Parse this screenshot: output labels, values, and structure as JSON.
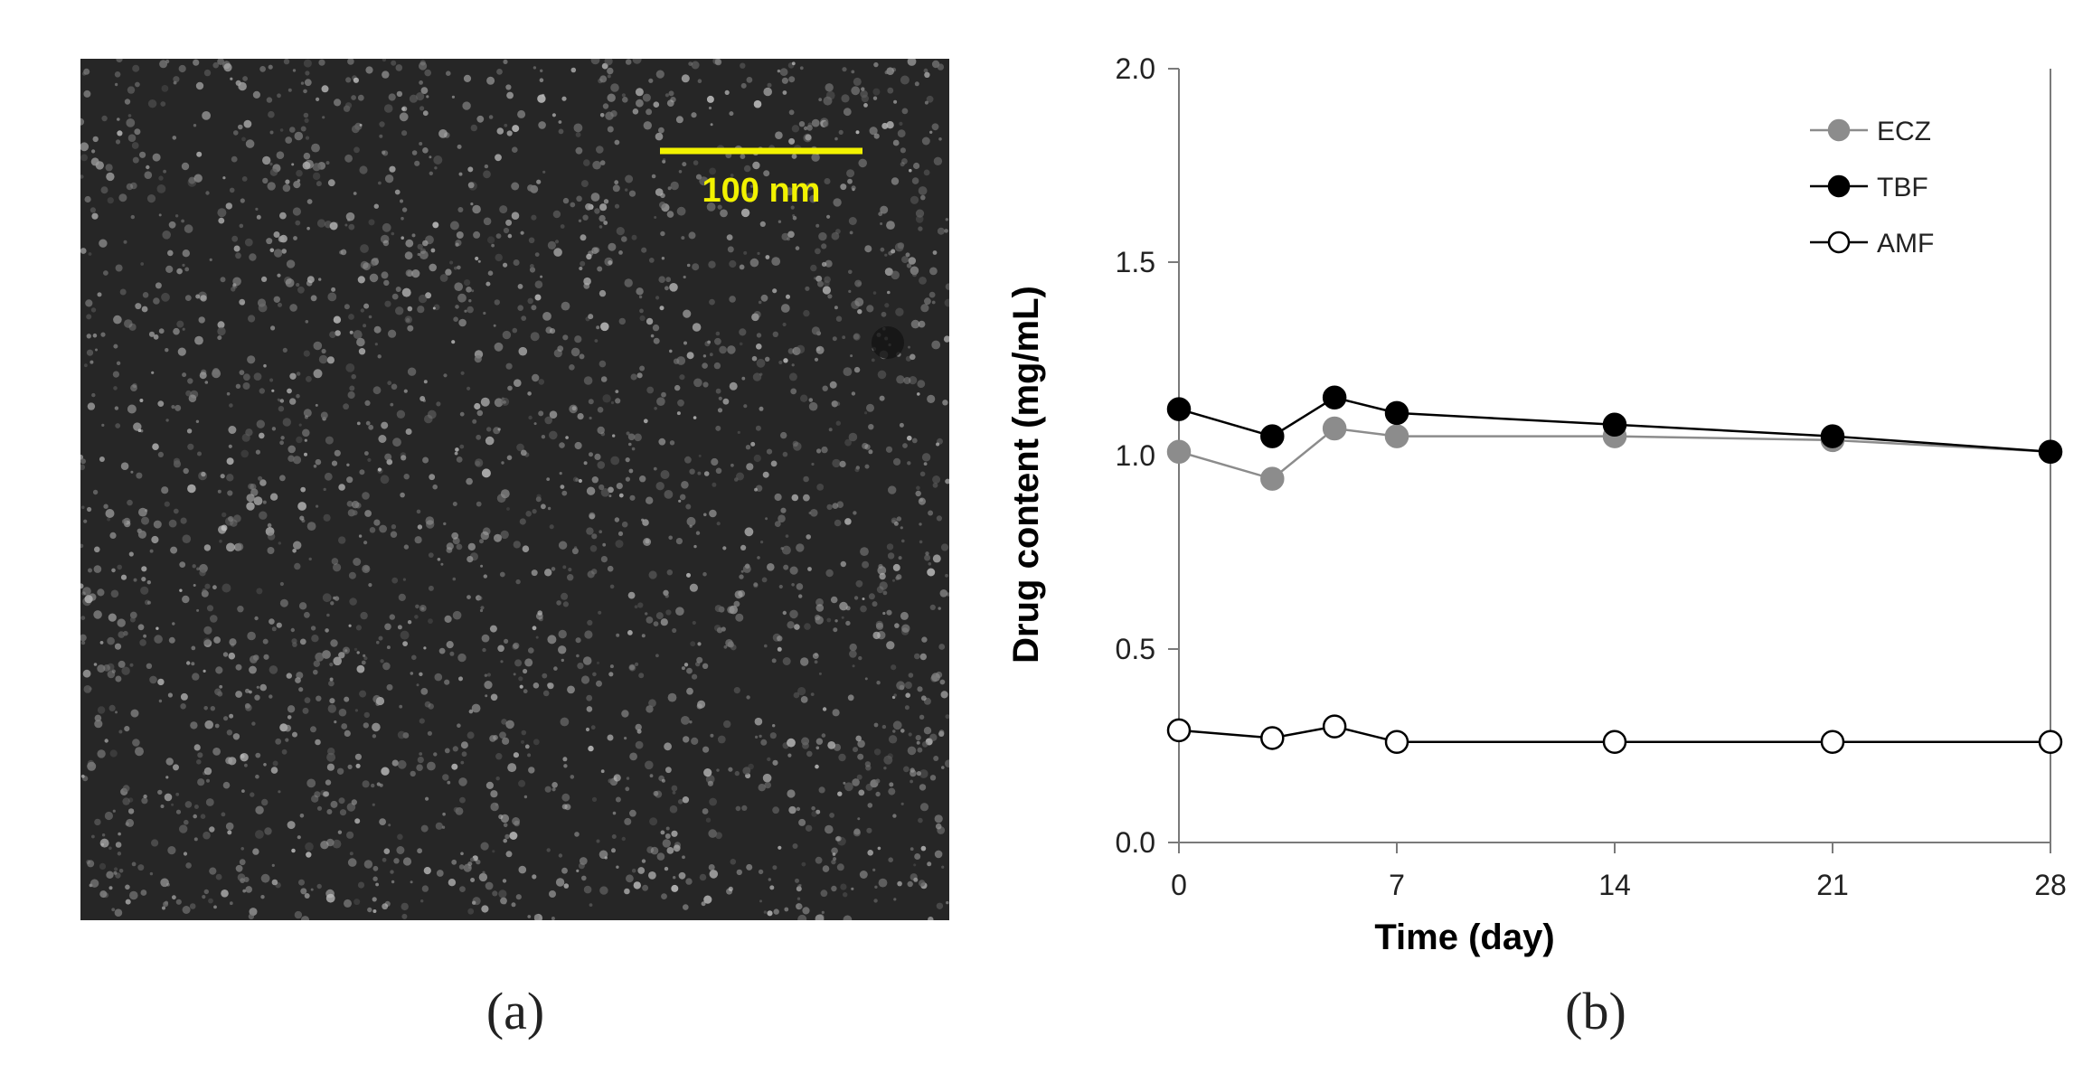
{
  "panel_a": {
    "label": "(a)",
    "scale_bar_label": "100 nm",
    "colors": {
      "background": "#262626",
      "scale_bar": "#f2f200"
    }
  },
  "panel_b": {
    "label": "(b)"
  },
  "chart_data": {
    "type": "line",
    "title": "",
    "xlabel": "Time (day)",
    "ylabel": "Drug content  (mg/mL)",
    "xlim": [
      0,
      28
    ],
    "ylim": [
      0.0,
      2.0
    ],
    "x_ticks": [
      0,
      7,
      14,
      21,
      28
    ],
    "x_tick_labels": [
      "0",
      "7",
      "14",
      "21",
      "28"
    ],
    "y_ticks": [
      0.0,
      0.5,
      1.0,
      1.5,
      2.0
    ],
    "y_tick_labels": [
      "0.0",
      "0.5",
      "1.0",
      "1.5",
      "2.0"
    ],
    "grid": false,
    "legend_position": "top-right",
    "series": [
      {
        "name": "ECZ",
        "marker": "filled",
        "color": "#8c8c8c",
        "x": [
          0,
          3,
          5,
          7,
          14,
          21,
          28
        ],
        "y": [
          1.01,
          0.94,
          1.07,
          1.05,
          1.05,
          1.04,
          1.01
        ]
      },
      {
        "name": "TBF",
        "marker": "filled",
        "color": "#000000",
        "x": [
          0,
          3,
          5,
          7,
          14,
          21,
          28
        ],
        "y": [
          1.12,
          1.05,
          1.15,
          1.11,
          1.08,
          1.05,
          1.01
        ]
      },
      {
        "name": "AMF",
        "marker": "open",
        "color": "#000000",
        "x": [
          0,
          3,
          5,
          7,
          14,
          21,
          28
        ],
        "y": [
          0.29,
          0.27,
          0.3,
          0.26,
          0.26,
          0.26,
          0.26
        ]
      }
    ]
  }
}
